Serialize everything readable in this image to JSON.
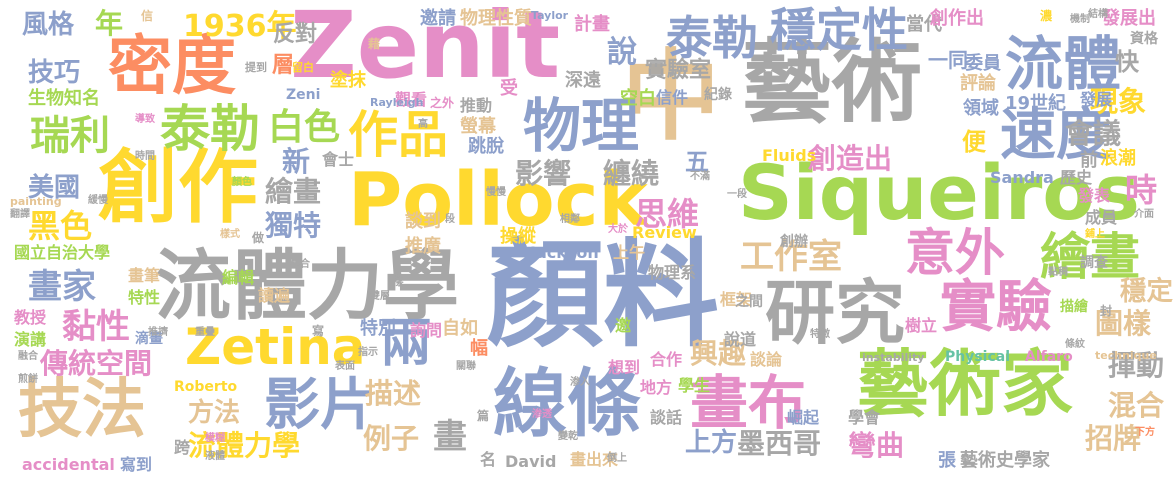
{
  "colors": {
    "pink": "#e58ec7",
    "gray": "#a7a7a7",
    "green": "#a6d853",
    "blue": "#8da0cb",
    "orange": "#fc8d62",
    "yellow": "#ffd92f",
    "tan": "#e5c494",
    "teal": "#66c2a5"
  },
  "words": [
    {
      "text": "顏料",
      "color": "blue"
    },
    {
      "text": "Zenit",
      "color": "pink"
    },
    {
      "text": "藝術",
      "color": "gray"
    },
    {
      "text": "創作",
      "color": "yellow"
    },
    {
      "text": "Pollock",
      "color": "yellow"
    },
    {
      "text": "Siqueiros",
      "color": "green"
    },
    {
      "text": "流體力學",
      "color": "gray"
    },
    {
      "text": "藝術家",
      "color": "green"
    },
    {
      "text": "線條",
      "color": "blue"
    },
    {
      "text": "中",
      "color": "tan"
    },
    {
      "text": "研究",
      "color": "gray"
    },
    {
      "text": "密度",
      "color": "orange"
    },
    {
      "text": "技法",
      "color": "tan"
    },
    {
      "text": "流體",
      "color": "blue"
    },
    {
      "text": "物理",
      "color": "blue"
    },
    {
      "text": "畫布",
      "color": "pink"
    },
    {
      "text": "實驗",
      "color": "pink"
    },
    {
      "text": "速度",
      "color": "blue"
    },
    {
      "text": "Zetina",
      "color": "yellow"
    },
    {
      "text": "影片",
      "color": "blue"
    },
    {
      "text": "泰勒",
      "color": "green"
    },
    {
      "text": "泰勒",
      "color": "blue"
    },
    {
      "text": "瑞利",
      "color": "green"
    },
    {
      "text": "作品",
      "color": "yellow"
    },
    {
      "text": "穩定性",
      "color": "blue"
    },
    {
      "text": "意外",
      "color": "pink"
    },
    {
      "text": "繪畫",
      "color": "green"
    },
    {
      "text": "兩",
      "color": "blue"
    },
    {
      "text": "1936年",
      "color": "yellow"
    },
    {
      "text": "白色",
      "color": "green"
    },
    {
      "text": "黑色",
      "color": "yellow"
    },
    {
      "text": "黏性",
      "color": "pink"
    },
    {
      "text": "畫家",
      "color": "blue"
    },
    {
      "text": "工作室",
      "color": "tan"
    },
    {
      "text": "創造出",
      "color": "pink"
    },
    {
      "text": "思維",
      "color": "pink"
    },
    {
      "text": "傳統空間",
      "color": "pink"
    },
    {
      "text": "影響",
      "color": "gray"
    },
    {
      "text": "纏繞",
      "color": "gray"
    },
    {
      "text": "說",
      "color": "blue"
    },
    {
      "text": "會議",
      "color": "gray"
    },
    {
      "text": "現象",
      "color": "yellow"
    },
    {
      "text": "時",
      "color": "pink"
    },
    {
      "text": "圖樣",
      "color": "tan"
    },
    {
      "text": "穩定",
      "color": "tan"
    },
    {
      "text": "揮動",
      "color": "gray"
    },
    {
      "text": "混合",
      "color": "tan"
    },
    {
      "text": "招牌",
      "color": "tan"
    },
    {
      "text": "彎曲",
      "color": "pink"
    },
    {
      "text": "墨西哥",
      "color": "gray"
    },
    {
      "text": "興趣",
      "color": "tan"
    },
    {
      "text": "上方",
      "color": "blue"
    },
    {
      "text": "描述",
      "color": "tan"
    },
    {
      "text": "畫",
      "color": "gray"
    },
    {
      "text": "例子",
      "color": "tan"
    },
    {
      "text": "方法",
      "color": "tan"
    },
    {
      "text": "流體力學",
      "color": "yellow"
    },
    {
      "text": "繪畫",
      "color": "gray"
    },
    {
      "text": "獨特",
      "color": "blue"
    },
    {
      "text": "新",
      "color": "blue"
    },
    {
      "text": "風格",
      "color": "blue"
    },
    {
      "text": "年",
      "color": "green"
    },
    {
      "text": "技巧",
      "color": "blue"
    },
    {
      "text": "美國",
      "color": "blue"
    },
    {
      "text": "實驗室",
      "color": "gray"
    },
    {
      "text": "五",
      "color": "blue"
    },
    {
      "text": "便",
      "color": "yellow"
    },
    {
      "text": "快",
      "color": "gray"
    },
    {
      "text": "層",
      "color": "orange"
    },
    {
      "text": "反對",
      "color": "gray"
    },
    {
      "text": "邀請",
      "color": "blue"
    },
    {
      "text": "物理性質",
      "color": "tan"
    },
    {
      "text": "計畫",
      "color": "pink"
    },
    {
      "text": "當代",
      "color": "gray"
    },
    {
      "text": "創作出",
      "color": "pink"
    },
    {
      "text": "一同",
      "color": "blue"
    },
    {
      "text": "委員",
      "color": "blue"
    },
    {
      "text": "評論",
      "color": "tan"
    },
    {
      "text": "發展出",
      "color": "pink"
    },
    {
      "text": "資格",
      "color": "gray"
    },
    {
      "text": "發展",
      "color": "blue"
    },
    {
      "text": "領域",
      "color": "blue"
    },
    {
      "text": "19世紀",
      "color": "blue"
    },
    {
      "text": "生物知名",
      "color": "green"
    },
    {
      "text": "塗抹",
      "color": "yellow"
    },
    {
      "text": "Zeni",
      "color": "blue"
    },
    {
      "text": "受",
      "color": "pink"
    },
    {
      "text": "深遠",
      "color": "gray"
    },
    {
      "text": "推動",
      "color": "gray"
    },
    {
      "text": "空白",
      "color": "green"
    },
    {
      "text": "信件",
      "color": "blue"
    },
    {
      "text": "紀錄",
      "color": "gray"
    },
    {
      "text": "螢幕",
      "color": "tan"
    },
    {
      "text": "觀看",
      "color": "pink"
    },
    {
      "text": "跳脫",
      "color": "blue"
    },
    {
      "text": "會士",
      "color": "gray"
    },
    {
      "text": "談到",
      "color": "tan"
    },
    {
      "text": "Fluids",
      "color": "yellow"
    },
    {
      "text": "Sandra",
      "color": "blue"
    },
    {
      "text": "歷史",
      "color": "gray"
    },
    {
      "text": "浪潮",
      "color": "yellow"
    },
    {
      "text": "前",
      "color": "gray"
    },
    {
      "text": "發表",
      "color": "pink"
    },
    {
      "text": "成員",
      "color": "gray"
    },
    {
      "text": "調查",
      "color": "gray"
    },
    {
      "text": "框架",
      "color": "tan"
    },
    {
      "text": "推廣",
      "color": "tan"
    },
    {
      "text": "操縱",
      "color": "yellow"
    },
    {
      "text": "Review",
      "color": "yellow"
    },
    {
      "text": "上午",
      "color": "tan"
    },
    {
      "text": "Jackson",
      "color": "blue"
    },
    {
      "text": "物理系",
      "color": "gray"
    },
    {
      "text": "創辦",
      "color": "gray"
    },
    {
      "text": "編輯",
      "color": "green"
    },
    {
      "text": "讀遍",
      "color": "tan"
    },
    {
      "text": "自如",
      "color": "tan"
    },
    {
      "text": "特別",
      "color": "blue"
    },
    {
      "text": "詢問",
      "color": "pink"
    },
    {
      "text": "國立自治大學",
      "color": "green"
    },
    {
      "text": "畫筆",
      "color": "tan"
    },
    {
      "text": "特性",
      "color": "green"
    },
    {
      "text": "教授",
      "color": "pink"
    },
    {
      "text": "演講",
      "color": "green"
    },
    {
      "text": "滴畫",
      "color": "blue"
    },
    {
      "text": "幅",
      "color": "orange"
    },
    {
      "text": "Roberto",
      "color": "yellow"
    },
    {
      "text": "邀",
      "color": "green"
    },
    {
      "text": "說道",
      "color": "gray"
    },
    {
      "text": "談論",
      "color": "tan"
    },
    {
      "text": "合作",
      "color": "pink"
    },
    {
      "text": "想到",
      "color": "pink"
    },
    {
      "text": "Physical",
      "color": "teal"
    },
    {
      "text": "Alfaro",
      "color": "pink"
    },
    {
      "text": "描繪",
      "color": "green"
    },
    {
      "text": "學會",
      "color": "gray"
    },
    {
      "text": "樹立",
      "color": "pink"
    },
    {
      "text": "之間",
      "color": "gray"
    },
    {
      "text": "學生",
      "color": "green"
    },
    {
      "text": "地方",
      "color": "pink"
    },
    {
      "text": "談話",
      "color": "gray"
    },
    {
      "text": "崛起",
      "color": "blue"
    },
    {
      "text": "跨",
      "color": "gray"
    },
    {
      "text": "David",
      "color": "gray"
    },
    {
      "text": "寫到",
      "color": "blue"
    },
    {
      "text": "accidental",
      "color": "pink"
    },
    {
      "text": "名",
      "color": "gray"
    },
    {
      "text": "畫出來",
      "color": "tan"
    },
    {
      "text": "藝術史學家",
      "color": "gray"
    },
    {
      "text": "張",
      "color": "blue"
    },
    {
      "text": "Taylor",
      "color": "blue"
    },
    {
      "text": "Rayleigh",
      "color": "blue"
    },
    {
      "text": "painting",
      "color": "tan"
    },
    {
      "text": "instability",
      "color": "gray"
    },
    {
      "text": "technique",
      "color": "tan"
    },
    {
      "text": "信",
      "color": "tan"
    },
    {
      "text": "藉",
      "color": "tan"
    },
    {
      "text": "濃",
      "color": "yellow"
    },
    {
      "text": "機制",
      "color": "gray"
    },
    {
      "text": "結構",
      "color": "gray"
    },
    {
      "text": "提到",
      "color": "gray"
    },
    {
      "text": "留白",
      "color": "yellow"
    },
    {
      "text": "導致",
      "color": "pink"
    },
    {
      "text": "之外",
      "color": "pink"
    },
    {
      "text": "高",
      "color": "gray"
    },
    {
      "text": "時間",
      "color": "gray"
    },
    {
      "text": "顏色",
      "color": "green"
    },
    {
      "text": "緩慢",
      "color": "gray"
    },
    {
      "text": "慢慢",
      "color": "gray"
    },
    {
      "text": "一段",
      "color": "gray"
    },
    {
      "text": "不滿",
      "color": "gray"
    },
    {
      "text": "鋪上",
      "color": "yellow"
    },
    {
      "text": "大於",
      "color": "pink"
    },
    {
      "text": "相鄰",
      "color": "gray"
    },
    {
      "text": "段",
      "color": "gray"
    },
    {
      "text": "樣式",
      "color": "tan"
    },
    {
      "text": "做",
      "color": "gray"
    },
    {
      "text": "疊合",
      "color": "gray"
    },
    {
      "text": "翻譯",
      "color": "gray"
    },
    {
      "text": "雙層",
      "color": "gray"
    },
    {
      "text": "寫",
      "color": "gray"
    },
    {
      "text": "重疊",
      "color": "gray"
    },
    {
      "text": "指示",
      "color": "gray"
    },
    {
      "text": "表面",
      "color": "gray"
    },
    {
      "text": "推擠",
      "color": "gray"
    },
    {
      "text": "融合",
      "color": "gray"
    },
    {
      "text": "煎餅",
      "color": "gray"
    },
    {
      "text": "模糊",
      "color": "pink"
    },
    {
      "text": "液體",
      "color": "gray"
    },
    {
      "text": "篇",
      "color": "gray"
    },
    {
      "text": "渗透",
      "color": "pink"
    },
    {
      "text": "渗入",
      "color": "gray"
    },
    {
      "text": "變乾",
      "color": "gray"
    },
    {
      "text": "倒上",
      "color": "gray"
    },
    {
      "text": "關聯",
      "color": "gray"
    },
    {
      "text": "樣",
      "color": "gray"
    },
    {
      "text": "特徵",
      "color": "gray"
    },
    {
      "text": "黏稠",
      "color": "gray"
    },
    {
      "text": "條紋",
      "color": "gray"
    },
    {
      "text": "封",
      "color": "gray"
    },
    {
      "text": "介面",
      "color": "gray"
    },
    {
      "text": "下方",
      "color": "orange"
    }
  ]
}
